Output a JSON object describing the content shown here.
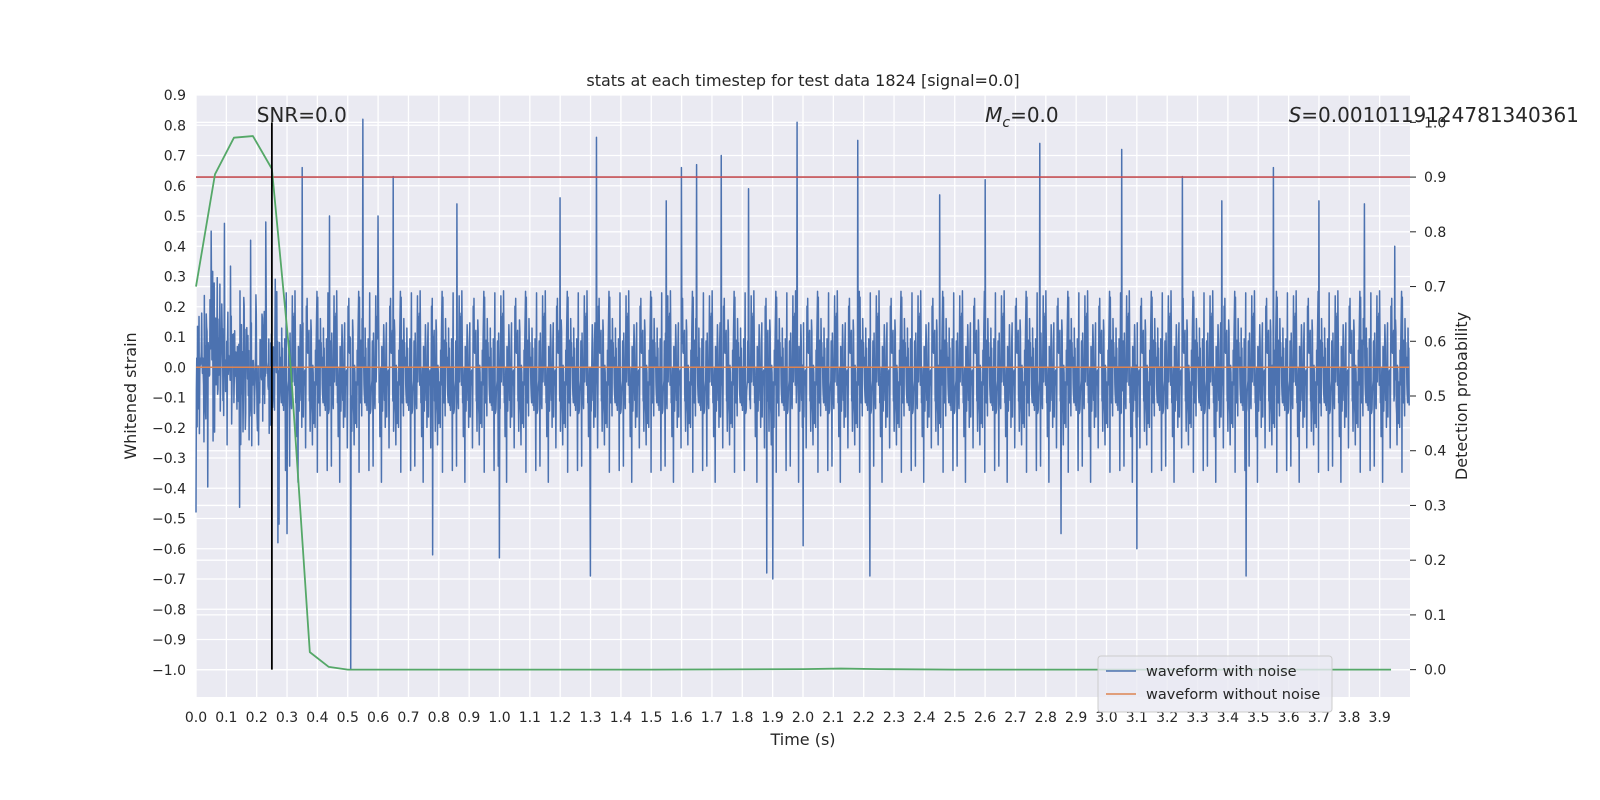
{
  "chart_data": {
    "type": "line",
    "title": "stats at each timestep for test data 1824 [signal=0.0]",
    "xlabel": "Time (s)",
    "ylabel": "Whitened strain",
    "y2label": "Detection probability",
    "xlim": [
      0.0,
      4.0
    ],
    "ylim": [
      -1.09,
      0.9
    ],
    "y2lim": [
      -0.05,
      1.05
    ],
    "xticks": [
      "0.0",
      "0.1",
      "0.2",
      "0.3",
      "0.4",
      "0.5",
      "0.6",
      "0.7",
      "0.8",
      "0.9",
      "1.0",
      "1.1",
      "1.2",
      "1.3",
      "1.4",
      "1.5",
      "1.6",
      "1.7",
      "1.8",
      "1.9",
      "2.0",
      "2.1",
      "2.2",
      "2.3",
      "2.4",
      "2.5",
      "2.6",
      "2.7",
      "2.8",
      "2.9",
      "3.0",
      "3.1",
      "3.2",
      "3.3",
      "3.4",
      "3.5",
      "3.6",
      "3.7",
      "3.8",
      "3.9"
    ],
    "yticks": [
      "0.9",
      "0.8",
      "0.7",
      "0.6",
      "0.5",
      "0.4",
      "0.3",
      "0.2",
      "0.1",
      "0.0",
      "−0.1",
      "−0.2",
      "−0.3",
      "−0.4",
      "−0.5",
      "−0.6",
      "−0.7",
      "−0.8",
      "−0.9",
      "−1.0"
    ],
    "y2ticks": [
      "1.0",
      "0.9",
      "0.8",
      "0.7",
      "0.6",
      "0.5",
      "0.4",
      "0.3",
      "0.2",
      "0.1",
      "0.0"
    ],
    "series": [
      {
        "name": "waveform with noise",
        "color": "#4c72b0",
        "description": "dense whitened strain noise, ~4096 samples over 0-4 s",
        "typical_low": -0.3,
        "typical_high": 0.35,
        "peaks": [
          {
            "t": 0.0,
            "v": 0.35
          },
          {
            "t": 0.0,
            "v": -0.48
          },
          {
            "t": 0.05,
            "v": 0.45
          },
          {
            "t": 0.18,
            "v": 0.42
          },
          {
            "t": 0.23,
            "v": 0.48
          },
          {
            "t": 0.27,
            "v": -0.58
          },
          {
            "t": 0.3,
            "v": -0.55
          },
          {
            "t": 0.35,
            "v": 0.66
          },
          {
            "t": 0.44,
            "v": 0.5
          },
          {
            "t": 0.51,
            "v": -1.0
          },
          {
            "t": 0.55,
            "v": 0.82
          },
          {
            "t": 0.6,
            "v": 0.5
          },
          {
            "t": 0.65,
            "v": 0.63
          },
          {
            "t": 0.78,
            "v": -0.62
          },
          {
            "t": 0.86,
            "v": 0.54
          },
          {
            "t": 1.0,
            "v": -0.63
          },
          {
            "t": 1.2,
            "v": 0.56
          },
          {
            "t": 1.3,
            "v": -0.69
          },
          {
            "t": 1.32,
            "v": 0.76
          },
          {
            "t": 1.55,
            "v": 0.55
          },
          {
            "t": 1.6,
            "v": 0.66
          },
          {
            "t": 1.65,
            "v": 0.67
          },
          {
            "t": 1.73,
            "v": 0.7
          },
          {
            "t": 1.82,
            "v": 0.59
          },
          {
            "t": 1.88,
            "v": -0.68
          },
          {
            "t": 1.9,
            "v": -0.7
          },
          {
            "t": 1.98,
            "v": 0.81
          },
          {
            "t": 2.0,
            "v": -0.59
          },
          {
            "t": 2.18,
            "v": 0.75
          },
          {
            "t": 2.22,
            "v": -0.69
          },
          {
            "t": 2.45,
            "v": 0.57
          },
          {
            "t": 2.6,
            "v": 0.62
          },
          {
            "t": 2.78,
            "v": 0.74
          },
          {
            "t": 2.85,
            "v": -0.55
          },
          {
            "t": 3.05,
            "v": 0.72
          },
          {
            "t": 3.1,
            "v": -0.6
          },
          {
            "t": 3.25,
            "v": 0.63
          },
          {
            "t": 3.38,
            "v": 0.55
          },
          {
            "t": 3.46,
            "v": -0.69
          },
          {
            "t": 3.55,
            "v": 0.66
          },
          {
            "t": 3.7,
            "v": 0.55
          },
          {
            "t": 3.85,
            "v": 0.54
          },
          {
            "t": 3.95,
            "v": 0.4
          }
        ]
      },
      {
        "name": "waveform without noise",
        "color": "#dd8452",
        "x": [
          0.0,
          4.0
        ],
        "y": [
          0.0,
          0.0
        ]
      },
      {
        "name": "detection probability",
        "axis": "right",
        "color": "#55a868",
        "x": [
          0.0,
          0.0625,
          0.125,
          0.1875,
          0.25,
          0.3125,
          0.375,
          0.4375,
          0.5,
          0.5625,
          1.0,
          1.5,
          2.0,
          2.125,
          2.25,
          2.5,
          3.0,
          3.5,
          3.9375
        ],
        "y": [
          0.7,
          0.905,
          0.972,
          0.975,
          0.915,
          0.55,
          0.032,
          0.005,
          0.0,
          0.0,
          0.0,
          0.0,
          0.001,
          0.002,
          0.001,
          0.0,
          0.0,
          0.0,
          0.0
        ]
      }
    ],
    "hlines": [
      {
        "value": 0.9,
        "axis": "right",
        "color": "#c44e52"
      }
    ],
    "vlines": [
      {
        "value": 0.25,
        "color": "#000000"
      }
    ],
    "annotations": [
      {
        "name": "snr",
        "text": "SNR=0.0",
        "x": 0.2
      },
      {
        "name": "chirp-mass",
        "prefix": "M",
        "sub": "c",
        "suffix": "=0.0",
        "x": 2.6
      },
      {
        "name": "s-stat",
        "prefix": "S",
        "suffix": "=0.0010119124781340361",
        "x": 3.6
      }
    ],
    "legend": {
      "position": "lower right",
      "entries": [
        "waveform with noise",
        "waveform without noise"
      ]
    },
    "grid": true
  }
}
